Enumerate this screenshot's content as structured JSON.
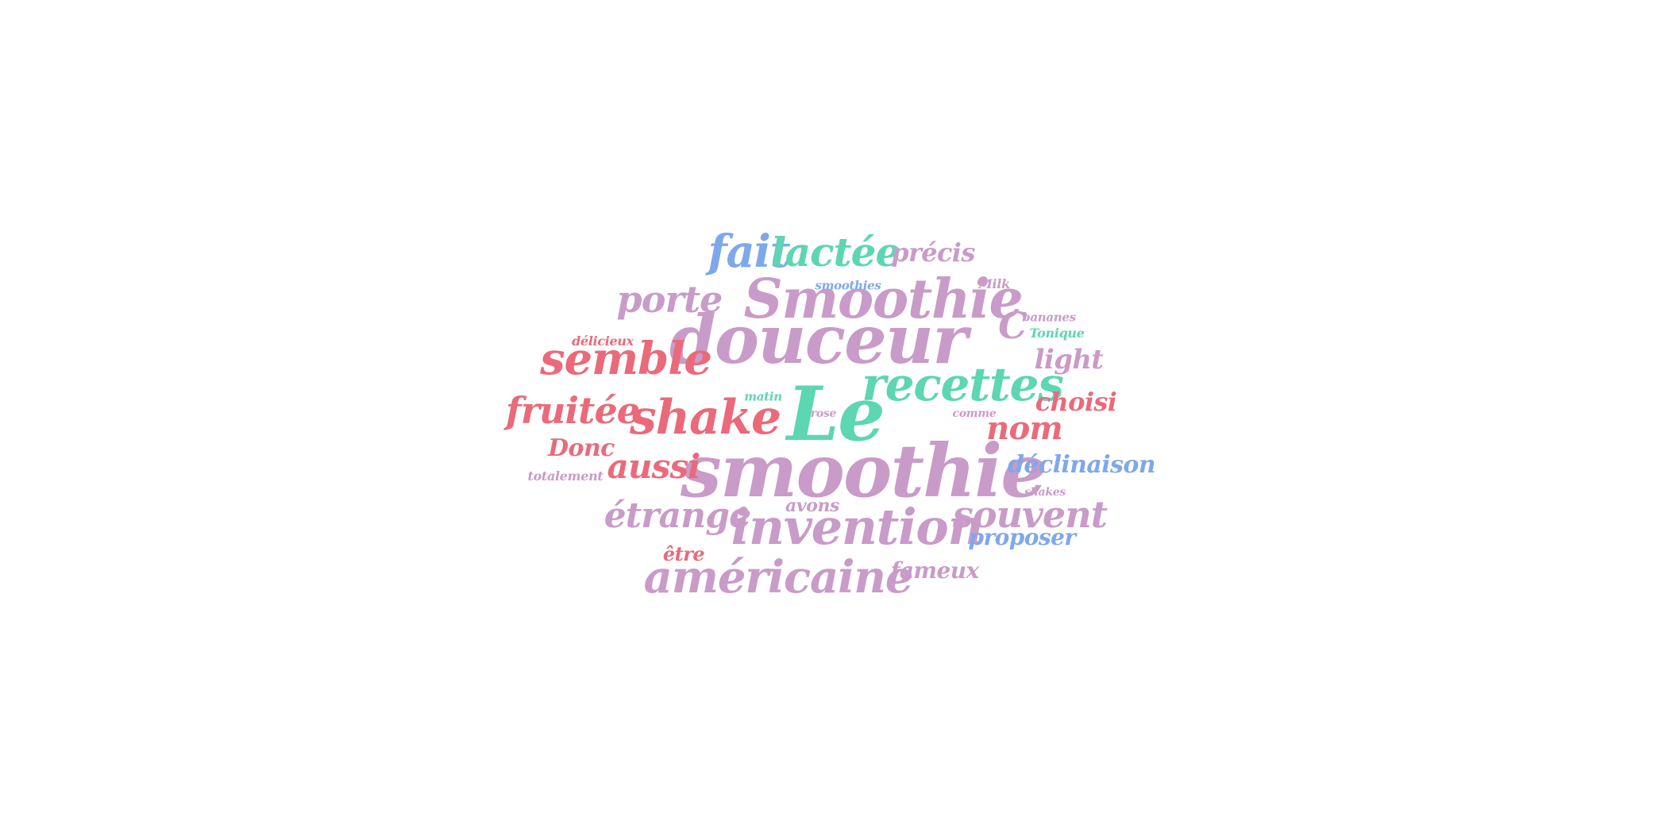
{
  "palette": {
    "pink": "#c99bc8",
    "red": "#ea6a7a",
    "green": "#5dd6b2",
    "blue": "#7ea8ea",
    "background": "#ffffff"
  },
  "words": [
    {
      "text": "smoothie",
      "color": "pink"
    },
    {
      "text": "Le",
      "color": "green"
    },
    {
      "text": "douceur",
      "color": "pink"
    },
    {
      "text": "Smoothie",
      "color": "pink"
    },
    {
      "text": "recettes",
      "color": "green"
    },
    {
      "text": "invention",
      "color": "pink"
    },
    {
      "text": "américaine",
      "color": "pink"
    },
    {
      "text": "semble",
      "color": "red"
    },
    {
      "text": "shake",
      "color": "red"
    },
    {
      "text": "fruitée",
      "color": "red"
    },
    {
      "text": "fait",
      "color": "blue"
    },
    {
      "text": "lactée",
      "color": "green"
    },
    {
      "text": "porte",
      "color": "pink"
    },
    {
      "text": "étrange",
      "color": "pink"
    },
    {
      "text": "souvent",
      "color": "pink"
    },
    {
      "text": "aussi",
      "color": "red"
    },
    {
      "text": "nom",
      "color": "red"
    },
    {
      "text": "précis",
      "color": "pink"
    },
    {
      "text": "C",
      "color": "pink"
    },
    {
      "text": "light",
      "color": "pink"
    },
    {
      "text": "choisi",
      "color": "red"
    },
    {
      "text": "déclinaison",
      "color": "blue"
    },
    {
      "text": "proposer",
      "color": "blue"
    },
    {
      "text": "Donc",
      "color": "red"
    },
    {
      "text": "fameux",
      "color": "pink"
    },
    {
      "text": "avons",
      "color": "pink"
    },
    {
      "text": "être",
      "color": "red"
    },
    {
      "text": "délicieux",
      "color": "red"
    },
    {
      "text": "totalement",
      "color": "pink"
    },
    {
      "text": "smoothies",
      "color": "blue"
    },
    {
      "text": "Milk",
      "color": "pink"
    },
    {
      "text": "bananes",
      "color": "pink"
    },
    {
      "text": "Tonique",
      "color": "green"
    },
    {
      "text": "matin",
      "color": "green"
    },
    {
      "text": "rose",
      "color": "pink"
    },
    {
      "text": "comme",
      "color": "pink"
    },
    {
      "text": "shakes",
      "color": "pink"
    }
  ]
}
